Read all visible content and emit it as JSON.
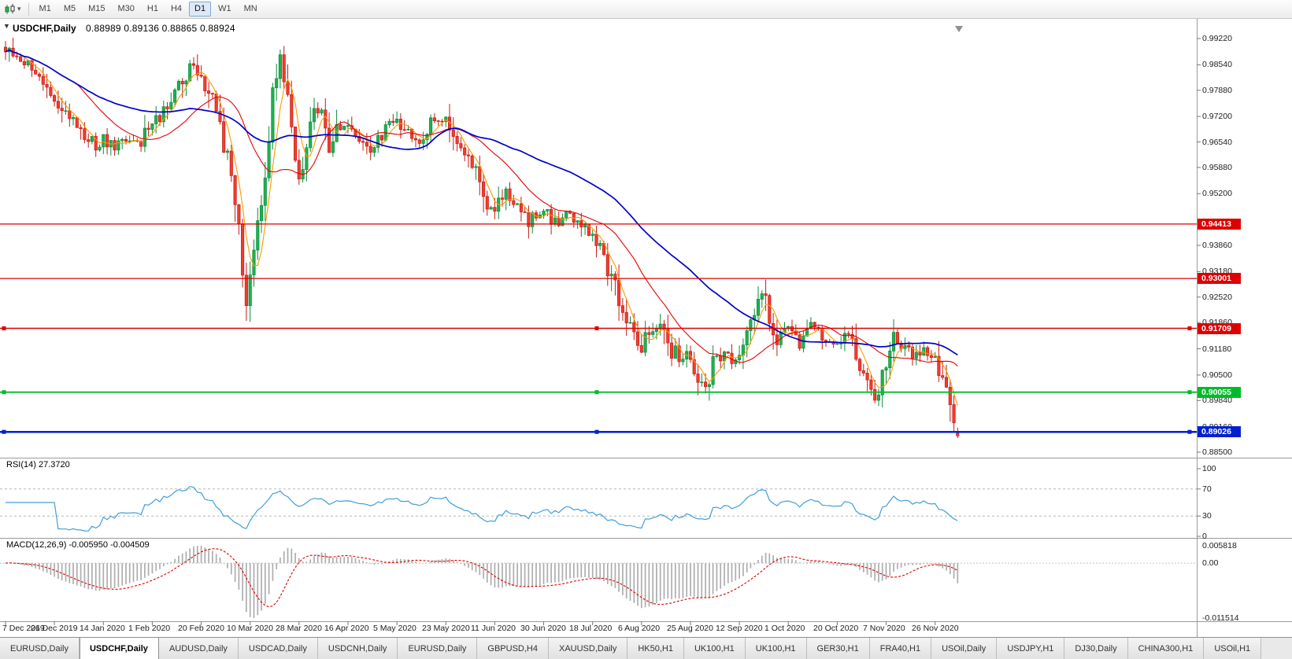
{
  "toolbar": {
    "timeframes": [
      "M1",
      "M5",
      "M15",
      "M30",
      "H1",
      "H4",
      "D1",
      "W1",
      "MN"
    ],
    "active_timeframe": "D1"
  },
  "chart": {
    "title_symbol": "USDCHF,Daily",
    "title_ohlc": "0.88989 0.89136 0.88865 0.88924"
  },
  "price_axis": {
    "ticks": [
      "0.99220",
      "0.98540",
      "0.97880",
      "0.97200",
      "0.96540",
      "0.95880",
      "0.95200",
      "0.93860",
      "0.93180",
      "0.92520",
      "0.91860",
      "0.91180",
      "0.90500",
      "0.89840",
      "0.89160",
      "0.88500"
    ],
    "badges": [
      {
        "label": "0.94413",
        "color": "#dd0000"
      },
      {
        "label": "0.93001",
        "color": "#dd0000"
      },
      {
        "label": "0.91709",
        "color": "#dd0000"
      },
      {
        "label": "0.90055",
        "color": "#00bb2a"
      },
      {
        "label": "0.89026",
        "color": "#0020cf"
      }
    ]
  },
  "rsi": {
    "label": "RSI(14) 27.3720",
    "axis": [
      "100",
      "70",
      "30",
      "0"
    ],
    "levels": [
      70,
      30
    ],
    "line_color": "#3f9fd8"
  },
  "macd": {
    "label": "MACD(12,26,9) -0.005950 -0.004509",
    "axis_max": "0.005818",
    "axis_zero": "0.00",
    "axis_min": "-0.011514",
    "bar_color": "#adadad",
    "signal_color": "#dd0000"
  },
  "time_axis": [
    "7 Dec 2019",
    "26 Dec 2019",
    "14 Jan 2020",
    "1 Feb 2020",
    "20 Feb 2020",
    "10 Mar 2020",
    "28 Mar 2020",
    "16 Apr 2020",
    "5 May 2020",
    "23 May 2020",
    "11 Jun 2020",
    "30 Jun 2020",
    "18 Jul 2020",
    "6 Aug 2020",
    "25 Aug 2020",
    "12 Sep 2020",
    "1 Oct 2020",
    "20 Oct 2020",
    "7 Nov 2020",
    "26 Nov 2020"
  ],
  "tabs": {
    "active_index": 1,
    "items": [
      "EURUSD,Daily",
      "USDCHF,Daily",
      "AUDUSD,Daily",
      "USDCAD,Daily",
      "USDCNH,Daily",
      "EURUSD,Daily",
      "GBPUSD,H4",
      "XAUUSD,Daily",
      "HK50,H1",
      "UK100,H1",
      "UK100,H1",
      "GER30,H1",
      "FRA40,H1",
      "USOil,Daily",
      "USDJPY,H1",
      "DJ30,Daily",
      "CHINA300,H1",
      "USOil,H1"
    ]
  },
  "chart_data": {
    "type": "candlestick",
    "symbol": "USDCHF",
    "timeframe": "Daily",
    "num_candles": 254,
    "candles_per_label": 13,
    "visible_price_range": [
      0.8837,
      0.9973
    ],
    "last_candle": {
      "o": 0.88989,
      "h": 0.89136,
      "l": 0.88865,
      "c": 0.88924
    },
    "close_waypoints": [
      [
        0,
        0.9905
      ],
      [
        2,
        0.988
      ],
      [
        5,
        0.9862
      ],
      [
        9,
        0.9835
      ],
      [
        13,
        0.9772
      ],
      [
        16,
        0.973
      ],
      [
        20,
        0.968
      ],
      [
        24,
        0.9645
      ],
      [
        26,
        0.966
      ],
      [
        29,
        0.9635
      ],
      [
        32,
        0.9665
      ],
      [
        36,
        0.965
      ],
      [
        39,
        0.97
      ],
      [
        42,
        0.973
      ],
      [
        45,
        0.977
      ],
      [
        48,
        0.9838
      ],
      [
        50,
        0.9852
      ],
      [
        52,
        0.982
      ],
      [
        54,
        0.978
      ],
      [
        56,
        0.9718
      ],
      [
        58,
        0.965
      ],
      [
        60,
        0.956
      ],
      [
        62,
        0.943
      ],
      [
        64,
        0.924
      ],
      [
        65,
        0.931
      ],
      [
        67,
        0.945
      ],
      [
        69,
        0.958
      ],
      [
        71,
        0.978
      ],
      [
        73,
        0.9895
      ],
      [
        75,
        0.976
      ],
      [
        77,
        0.959
      ],
      [
        78,
        0.956
      ],
      [
        80,
        0.966
      ],
      [
        82,
        0.9745
      ],
      [
        84,
        0.972
      ],
      [
        86,
        0.964
      ],
      [
        88,
        0.968
      ],
      [
        91,
        0.97
      ],
      [
        94,
        0.967
      ],
      [
        97,
        0.9635
      ],
      [
        100,
        0.968
      ],
      [
        104,
        0.971
      ],
      [
        107,
        0.968
      ],
      [
        110,
        0.966
      ],
      [
        113,
        0.97
      ],
      [
        117,
        0.9712
      ],
      [
        119,
        0.966
      ],
      [
        122,
        0.963
      ],
      [
        125,
        0.958
      ],
      [
        127,
        0.9505
      ],
      [
        130,
        0.9475
      ],
      [
        133,
        0.952
      ],
      [
        136,
        0.9498
      ],
      [
        139,
        0.9455
      ],
      [
        143,
        0.9478
      ],
      [
        146,
        0.944
      ],
      [
        149,
        0.9465
      ],
      [
        152,
        0.9448
      ],
      [
        156,
        0.9405
      ],
      [
        159,
        0.936
      ],
      [
        162,
        0.928
      ],
      [
        165,
        0.918
      ],
      [
        168,
        0.9135
      ],
      [
        169,
        0.912
      ],
      [
        171,
        0.9155
      ],
      [
        174,
        0.919
      ],
      [
        177,
        0.912
      ],
      [
        180,
        0.9085
      ],
      [
        182,
        0.9105
      ],
      [
        184,
        0.9035
      ],
      [
        186,
        0.9015
      ],
      [
        188,
        0.908
      ],
      [
        191,
        0.9115
      ],
      [
        193,
        0.9075
      ],
      [
        195,
        0.91
      ],
      [
        197,
        0.914
      ],
      [
        199,
        0.921
      ],
      [
        201,
        0.9272
      ],
      [
        203,
        0.921
      ],
      [
        205,
        0.915
      ],
      [
        208,
        0.9165
      ],
      [
        211,
        0.913
      ],
      [
        214,
        0.918
      ],
      [
        217,
        0.915
      ],
      [
        221,
        0.9135
      ],
      [
        224,
        0.9158
      ],
      [
        226,
        0.9105
      ],
      [
        229,
        0.904
      ],
      [
        231,
        0.9
      ],
      [
        234,
        0.906
      ],
      [
        236,
        0.914
      ],
      [
        238,
        0.9125
      ],
      [
        241,
        0.9098
      ],
      [
        244,
        0.9118
      ],
      [
        247,
        0.909
      ],
      [
        249,
        0.9048
      ],
      [
        251,
        0.8975
      ],
      [
        253,
        0.8892
      ]
    ],
    "hlines": [
      {
        "price": 0.94413,
        "color": "#dd0000",
        "width": 1.3,
        "selected": false
      },
      {
        "price": 0.93001,
        "color": "#dd0000",
        "width": 1.3,
        "selected": false
      },
      {
        "price": 0.91709,
        "color": "#dd0000",
        "width": 1.5,
        "selected": true
      },
      {
        "price": 0.90055,
        "color": "#00bb2a",
        "width": 1.8,
        "selected": true
      },
      {
        "price": 0.89026,
        "color": "#0020cf",
        "width": 2.5,
        "selected": true
      }
    ],
    "moving_averages": [
      {
        "period": 5,
        "color": "#ff9900",
        "width": 1.1
      },
      {
        "period": 20,
        "color": "#e60000",
        "width": 1.1
      },
      {
        "period": 50,
        "color": "#0000cc",
        "width": 1.7
      }
    ],
    "up_fill": "#1cb34f",
    "up_stroke": "#0e8a39",
    "down_fill": "#f43b30",
    "down_stroke": "#c01d14",
    "indicators": [
      {
        "name": "RSI",
        "period": 14,
        "value": 27.372
      },
      {
        "name": "MACD",
        "params": [
          12,
          26,
          9
        ],
        "values": [
          -0.00595,
          -0.004509
        ]
      }
    ]
  }
}
